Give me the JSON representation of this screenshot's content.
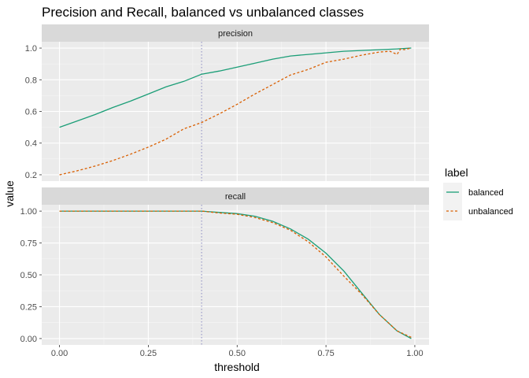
{
  "chart_data": {
    "type": "line",
    "title": "Precision and Recall, balanced vs unbalanced classes",
    "xlabel": "threshold",
    "ylabel": "value",
    "xlim": [
      -0.05,
      1.04
    ],
    "x_ticks": [
      "0.00",
      "0.25",
      "0.50",
      "0.75",
      "1.00"
    ],
    "x_tick_values": [
      0,
      0.25,
      0.5,
      0.75,
      1.0
    ],
    "reference_line": {
      "x": 0.4,
      "style": "dotted",
      "color": "#9a9ac8"
    },
    "grid": true,
    "legend": {
      "title": "label",
      "placement": "right",
      "entries": [
        {
          "name": "balanced",
          "color": "#1b9e77",
          "dash": "solid"
        },
        {
          "name": "unbalanced",
          "color": "#d95f02",
          "dash": "dotted"
        }
      ]
    },
    "panels": [
      {
        "strip": "precision",
        "ylim": [
          0.16,
          1.04
        ],
        "y_ticks": [
          "0.2",
          "0.4",
          "0.6",
          "0.8",
          "1.0"
        ],
        "y_tick_values": [
          0.2,
          0.4,
          0.6,
          0.8,
          1.0
        ],
        "series": [
          {
            "name": "balanced",
            "x": [
              0.0,
              0.05,
              0.1,
              0.15,
              0.2,
              0.25,
              0.3,
              0.35,
              0.4,
              0.45,
              0.5,
              0.55,
              0.6,
              0.65,
              0.7,
              0.75,
              0.8,
              0.85,
              0.9,
              0.95,
              0.99
            ],
            "y": [
              0.5,
              0.54,
              0.58,
              0.625,
              0.665,
              0.71,
              0.755,
              0.79,
              0.835,
              0.855,
              0.88,
              0.905,
              0.93,
              0.95,
              0.96,
              0.97,
              0.98,
              0.985,
              0.99,
              0.995,
              1.0
            ]
          },
          {
            "name": "unbalanced",
            "x": [
              0.0,
              0.05,
              0.1,
              0.15,
              0.2,
              0.25,
              0.3,
              0.35,
              0.4,
              0.45,
              0.5,
              0.55,
              0.6,
              0.65,
              0.7,
              0.75,
              0.8,
              0.85,
              0.9,
              0.93,
              0.95,
              0.96,
              0.97,
              0.99
            ],
            "y": [
              0.2,
              0.225,
              0.255,
              0.29,
              0.33,
              0.375,
              0.425,
              0.49,
              0.53,
              0.585,
              0.645,
              0.71,
              0.77,
              0.83,
              0.865,
              0.91,
              0.93,
              0.955,
              0.975,
              0.98,
              0.96,
              0.995,
              0.99,
              1.0
            ]
          }
        ]
      },
      {
        "strip": "recall",
        "ylim": [
          -0.05,
          1.05
        ],
        "y_ticks": [
          "0.00",
          "0.25",
          "0.50",
          "0.75",
          "1.00"
        ],
        "y_tick_values": [
          0,
          0.25,
          0.5,
          0.75,
          1.0
        ],
        "series": [
          {
            "name": "balanced",
            "x": [
              0.0,
              0.1,
              0.2,
              0.3,
              0.4,
              0.45,
              0.5,
              0.55,
              0.6,
              0.65,
              0.7,
              0.75,
              0.8,
              0.85,
              0.9,
              0.95,
              0.99
            ],
            "y": [
              1.0,
              1.0,
              1.0,
              1.0,
              1.0,
              0.99,
              0.98,
              0.96,
              0.92,
              0.86,
              0.78,
              0.67,
              0.53,
              0.36,
              0.19,
              0.06,
              0.0
            ],
            "vals_note": ""
          },
          {
            "name": "unbalanced",
            "x": [
              0.0,
              0.1,
              0.2,
              0.3,
              0.4,
              0.45,
              0.5,
              0.55,
              0.6,
              0.65,
              0.7,
              0.75,
              0.8,
              0.85,
              0.9,
              0.95,
              0.99
            ],
            "y": [
              1.0,
              1.0,
              1.0,
              1.0,
              1.0,
              0.985,
              0.975,
              0.95,
              0.91,
              0.85,
              0.76,
              0.64,
              0.49,
              0.35,
              0.19,
              0.06,
              0.01
            ]
          }
        ]
      }
    ]
  }
}
